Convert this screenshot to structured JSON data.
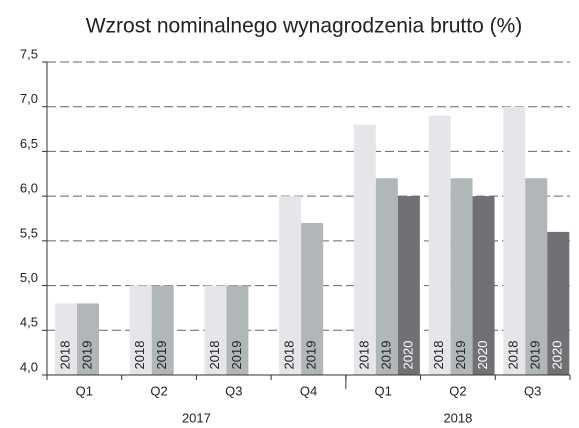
{
  "chart_data": {
    "type": "bar",
    "title": "Wzrost nominalnego wynagrodzenia brutto (%)",
    "categories": [
      "Q1",
      "Q2",
      "Q3",
      "Q4",
      "Q1",
      "Q2",
      "Q3"
    ],
    "groups": [
      {
        "label": "2017",
        "size": 4
      },
      {
        "label": "2018",
        "size": 3
      }
    ],
    "series": [
      {
        "name": "2018",
        "color": "#e6e6ea",
        "values": [
          4.8,
          5.0,
          5.0,
          6.0,
          6.8,
          6.9,
          7.0
        ]
      },
      {
        "name": "2019",
        "color": "#b1b6b9",
        "values": [
          4.8,
          5.0,
          5.0,
          5.7,
          6.2,
          6.2,
          6.2
        ]
      },
      {
        "name": "2020",
        "color": "#707075",
        "values": [
          null,
          null,
          null,
          null,
          6.0,
          6.0,
          5.6
        ]
      }
    ],
    "ylim": [
      4.0,
      7.5
    ],
    "yticks": [
      {
        "value": 4.0,
        "label": "4,0"
      },
      {
        "value": 4.5,
        "label": "4,5"
      },
      {
        "value": 5.0,
        "label": "5,0"
      },
      {
        "value": 5.5,
        "label": "5,5"
      },
      {
        "value": 6.0,
        "label": "6,0"
      },
      {
        "value": 6.5,
        "label": "6,5"
      },
      {
        "value": 7.0,
        "label": "7,0"
      },
      {
        "value": 7.5,
        "label": "7,5"
      }
    ],
    "grid": true
  }
}
